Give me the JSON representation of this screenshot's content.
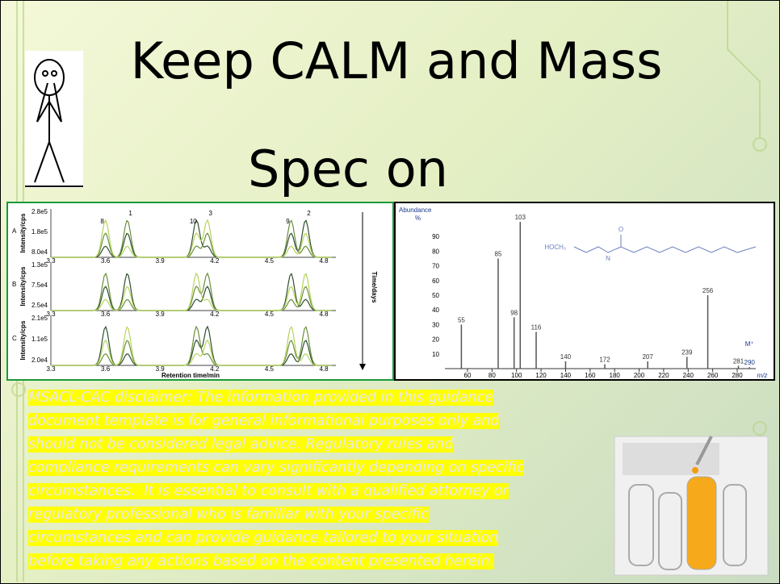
{
  "title": {
    "lines": [
      "Keep CALM and Mass",
      "Spec on"
    ]
  },
  "chromatogram": {
    "panels": [
      {
        "label": "A",
        "y_label": "Intensity/cps",
        "yticks": [
          "2.8e5",
          "1.8e5",
          "8.0e4"
        ]
      },
      {
        "label": "B",
        "y_label": "Intensity/cps",
        "yticks": [
          "1.3e5",
          "7.5e4",
          "2.5e4"
        ]
      },
      {
        "label": "C",
        "y_label": "Intensity/cps",
        "yticks": [
          "2.1e5",
          "1.1e5",
          "2.0e4"
        ]
      }
    ],
    "xticks": [
      "3.3",
      "3.6",
      "3.9",
      "4.2",
      "4.5",
      "4.8"
    ],
    "peak_labels": [
      "8",
      "1",
      "10",
      "3",
      "9",
      "2"
    ],
    "arrow_label": "Time/days",
    "x_label": "Retention time/min"
  },
  "mass_spectrum": {
    "y_label_lines": [
      "Abundance",
      "%"
    ],
    "yticks": [
      10,
      20,
      30,
      40,
      50,
      60,
      70,
      80,
      90
    ],
    "xticks": [
      60,
      80,
      100,
      120,
      140,
      160,
      180,
      200,
      220,
      240,
      260,
      280
    ],
    "x_label": "m/z",
    "peaks": [
      {
        "mz": 55,
        "abundance": 30
      },
      {
        "mz": 85,
        "abundance": 75
      },
      {
        "mz": 98,
        "abundance": 35
      },
      {
        "mz": 103,
        "abundance": 100
      },
      {
        "mz": 116,
        "abundance": 25
      },
      {
        "mz": 140,
        "abundance": 5
      },
      {
        "mz": 172,
        "abundance": 3
      },
      {
        "mz": 207,
        "abundance": 5
      },
      {
        "mz": 239,
        "abundance": 8
      },
      {
        "mz": 256,
        "abundance": 50
      },
      {
        "mz": 281,
        "abundance": 2
      },
      {
        "mz": 290,
        "abundance": 1
      }
    ],
    "molecular_ion": "M⁺",
    "structure_labels": [
      "HOCH₂",
      "N",
      "O"
    ]
  },
  "disclaimer": {
    "lines": [
      "MSACL-CAC disclaimer: The information provided in this guidance",
      "document template is for general informational purposes only and",
      "should not be considered legal advice. Regulatory rules and",
      "compliance requirements can vary significantly depending on specific",
      "circumstances.  It is essential to consult with a qualified attorney or",
      "regulatory professional who is familiar with your specific",
      "circumstances and can provide guidance tailored to your situation",
      "before taking any actions based on the content presented herein."
    ]
  }
}
